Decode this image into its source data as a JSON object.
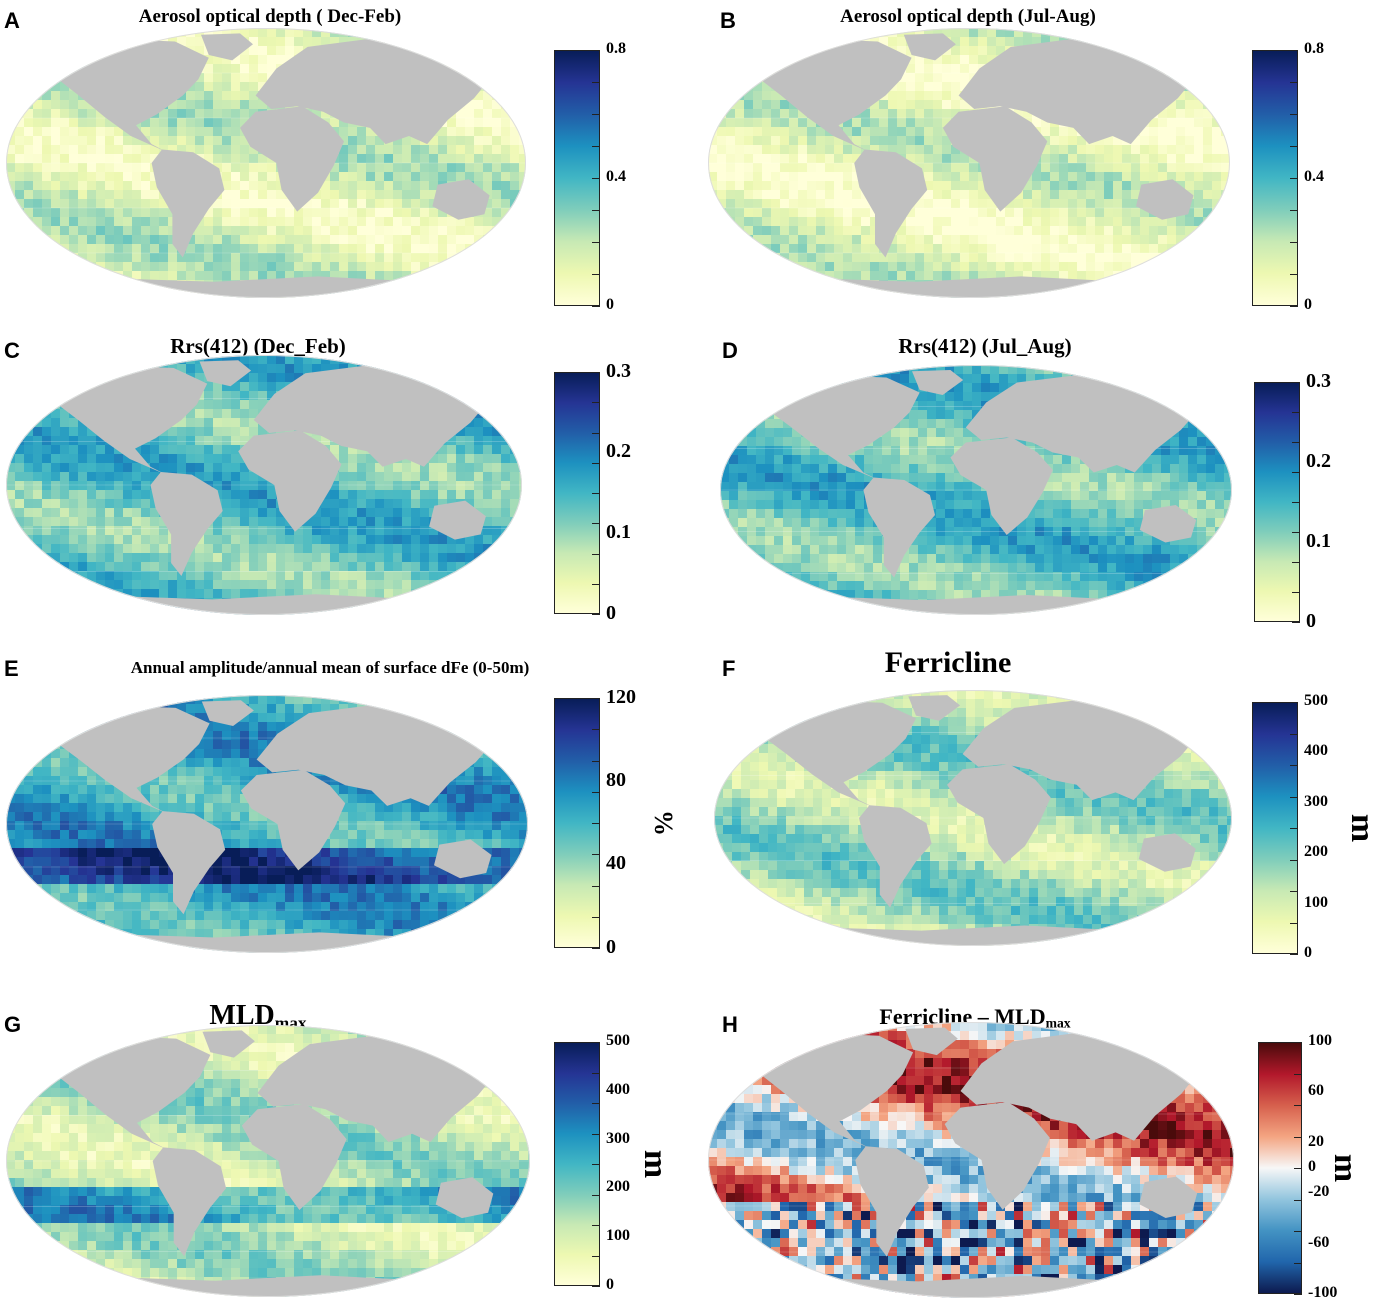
{
  "figure": {
    "panels": [
      {
        "letter": "A",
        "title": "Aerosol optical depth ( Dec-Feb)",
        "title_sub": "",
        "colormap": "YlGnBu",
        "ticks": [
          "0.8",
          "0.4",
          "0"
        ],
        "tick_values": [
          0.8,
          0.4,
          0
        ],
        "vmin": 0,
        "vmax": 0.8,
        "unit": "",
        "land_color": "#c0c0c0",
        "mean_level": 0.18
      },
      {
        "letter": "B",
        "title": "Aerosol optical depth (Jul-Aug)",
        "title_sub": "",
        "colormap": "YlGnBu",
        "ticks": [
          "0.8",
          "0.4",
          "0"
        ],
        "tick_values": [
          0.8,
          0.4,
          0
        ],
        "vmin": 0,
        "vmax": 0.8,
        "unit": "",
        "land_color": "#c0c0c0",
        "mean_level": 0.15
      },
      {
        "letter": "C",
        "title": "Rrs(412) (Dec_Feb)",
        "title_sub": "",
        "colormap": "YlGnBu",
        "ticks": [
          "0.3",
          "0.2",
          "0.1",
          "0"
        ],
        "tick_values": [
          0.3,
          0.2,
          0.1,
          0
        ],
        "vmin": 0,
        "vmax": 0.3,
        "unit": "",
        "land_color": "#c0c0c0",
        "mean_level": 0.45
      },
      {
        "letter": "D",
        "title": "Rrs(412) (Jul_Aug)",
        "title_sub": "",
        "colormap": "YlGnBu",
        "ticks": [
          "0.3",
          "0.2",
          "0.1",
          "0"
        ],
        "tick_values": [
          0.3,
          0.2,
          0.1,
          0
        ],
        "vmin": 0,
        "vmax": 0.3,
        "unit": "",
        "land_color": "#c0c0c0",
        "mean_level": 0.45
      },
      {
        "letter": "E",
        "title": "Annual amplitude/annual mean of surface dFe (0-50m)",
        "title_sub": "",
        "colormap": "YlGnBu",
        "ticks": [
          "120",
          "80",
          "40",
          "0"
        ],
        "tick_values": [
          120,
          80,
          40,
          0
        ],
        "vmin": 0,
        "vmax": 120,
        "unit": "%",
        "land_color": "#c0c0c0",
        "mean_level": 0.55
      },
      {
        "letter": "F",
        "title": "Ferricline",
        "title_sub": "",
        "colormap": "YlGnBu",
        "ticks": [
          "500",
          "400",
          "300",
          "200",
          "100",
          "0"
        ],
        "tick_values": [
          500,
          400,
          300,
          200,
          100,
          0
        ],
        "vmin": 0,
        "vmax": 500,
        "unit": "m",
        "land_color": "#c0c0c0",
        "mean_level": 0.3
      },
      {
        "letter": "G",
        "title": "MLD",
        "title_sub": "max",
        "colormap": "YlGnBu",
        "ticks": [
          "500",
          "400",
          "300",
          "200",
          "100",
          "0"
        ],
        "tick_values": [
          500,
          400,
          300,
          200,
          100,
          0
        ],
        "vmin": 0,
        "vmax": 500,
        "unit": "m",
        "land_color": "#c0c0c0",
        "mean_level": 0.25
      },
      {
        "letter": "H",
        "title": "Ferricline – MLD",
        "title_sub": "max",
        "colormap": "RdBu_r",
        "ticks": [
          "100",
          "60",
          "20",
          "0",
          "-20",
          "-60",
          "-100"
        ],
        "tick_values": [
          100,
          60,
          20,
          0,
          -20,
          -60,
          -100
        ],
        "vmin": -100,
        "vmax": 100,
        "unit": "m",
        "land_color": "#c0c0c0",
        "mean_level": 0.7
      }
    ]
  },
  "colors": {
    "YlGnBu": [
      "#ffffd9",
      "#edf8b1",
      "#c7e9b4",
      "#7fcdbb",
      "#41b6c4",
      "#1d91c0",
      "#225ea8",
      "#253494",
      "#081d58"
    ],
    "RdBu_r": [
      "#0d1a4f",
      "#2166ac",
      "#4393c3",
      "#92c5de",
      "#f7f7f7",
      "#f4a582",
      "#d6604d",
      "#b2182b",
      "#4a0b0b"
    ],
    "ocean_stroke": "#ffffff"
  }
}
